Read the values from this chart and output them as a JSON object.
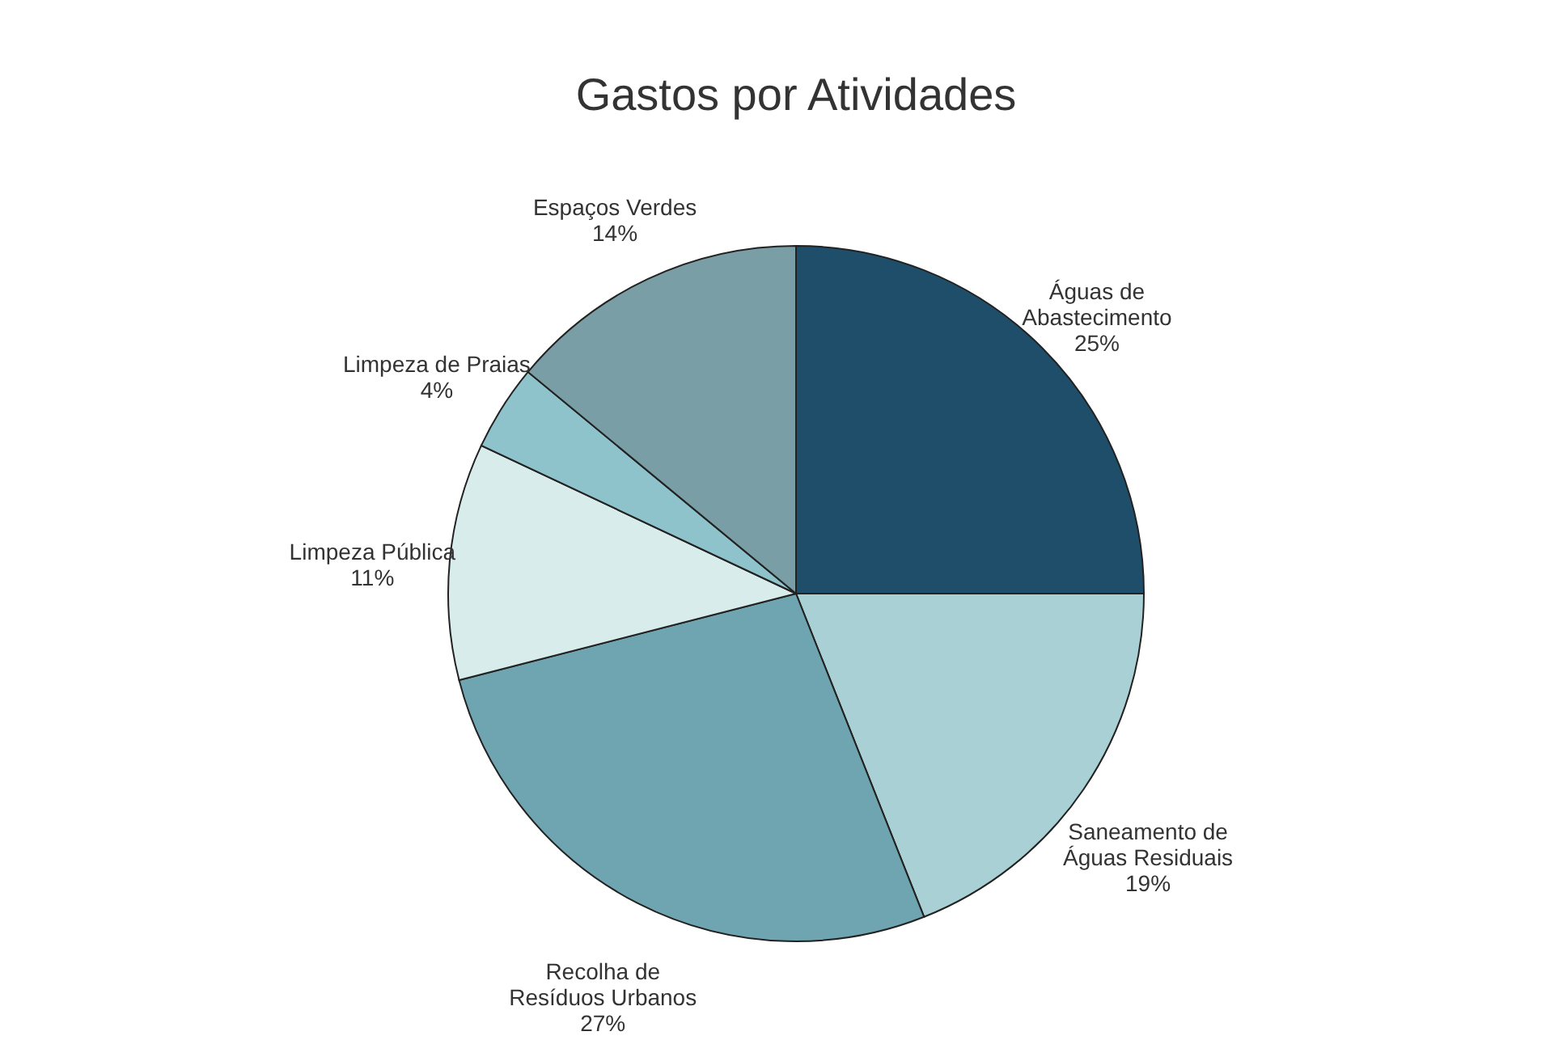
{
  "chart_data": {
    "type": "pie",
    "title": "Gastos por Atividades",
    "categories": [
      "Águas de\nAbastecimento",
      "Saneamento de\nÁguas Residuais",
      "Recolha de\nResíduos Urbanos",
      "Limpeza Pública",
      "Limpeza de Praias",
      "Espaços Verdes"
    ],
    "values": [
      25,
      19,
      27,
      11,
      4,
      14
    ],
    "value_labels": [
      "25%",
      "19%",
      "27%",
      "11%",
      "4%",
      "14%"
    ],
    "colors": [
      "#1f4e6b",
      "#a9d0d4",
      "#6fa5b0",
      "#d8ecec",
      "#8fc3cc",
      "#7a9ea6"
    ]
  }
}
